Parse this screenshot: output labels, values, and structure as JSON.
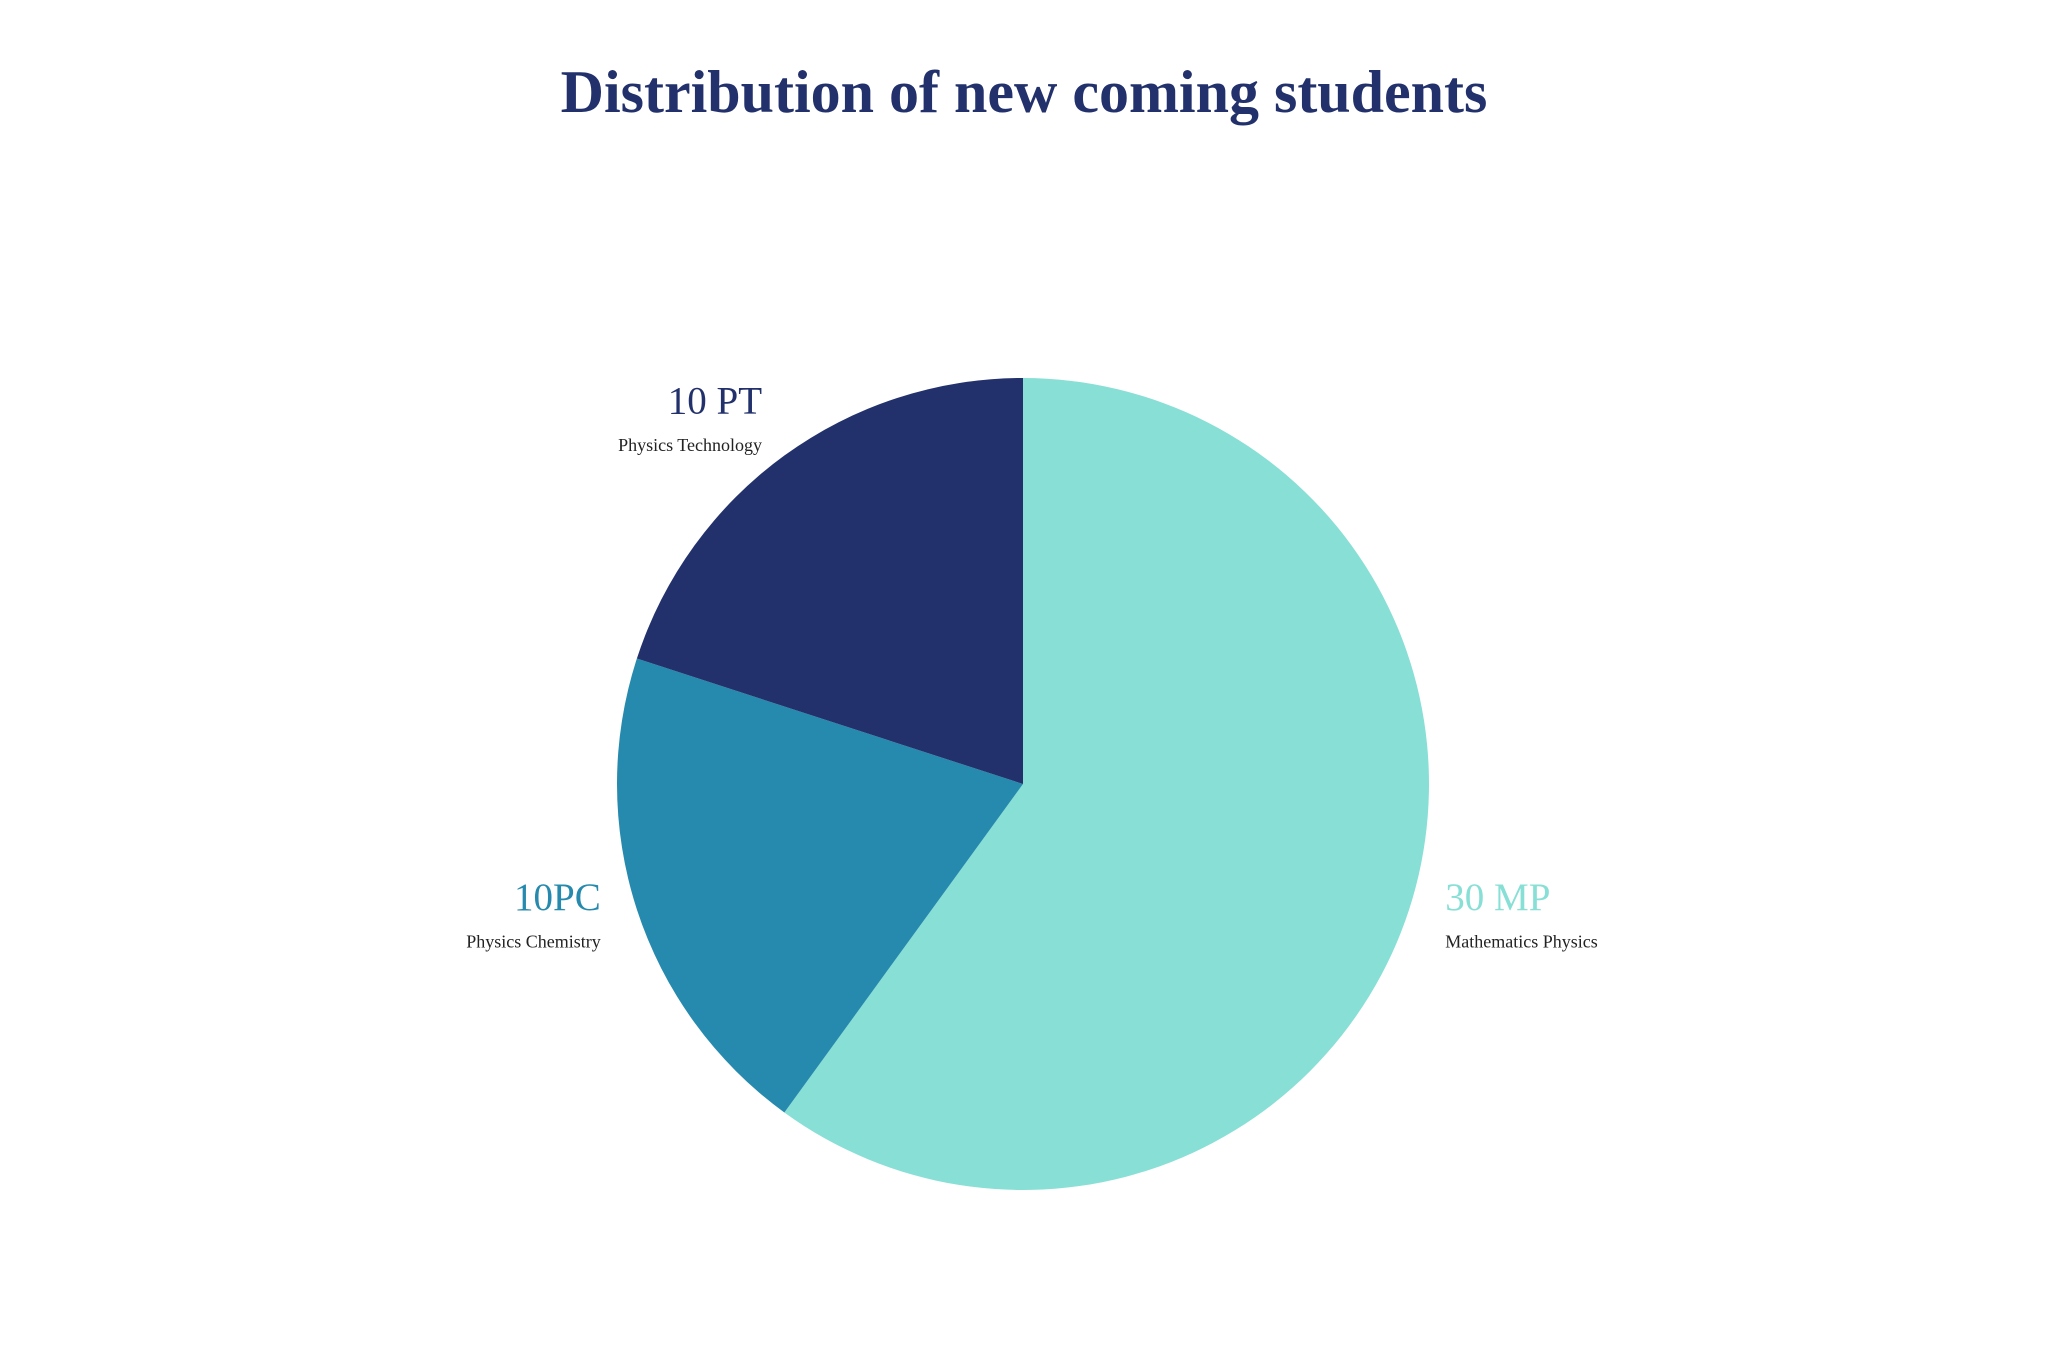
{
  "chart_data": {
    "type": "pie",
    "title": "Distribution of new coming students",
    "categories": [
      "Mathematics Physics",
      "Physics Chemistry",
      "Physics Technology"
    ],
    "values": [
      30,
      10,
      10
    ],
    "value_labels": [
      "30 MP",
      "10PC",
      "10 PT"
    ],
    "colors": [
      "#88dfd5",
      "#258aad",
      "#22316c"
    ]
  }
}
